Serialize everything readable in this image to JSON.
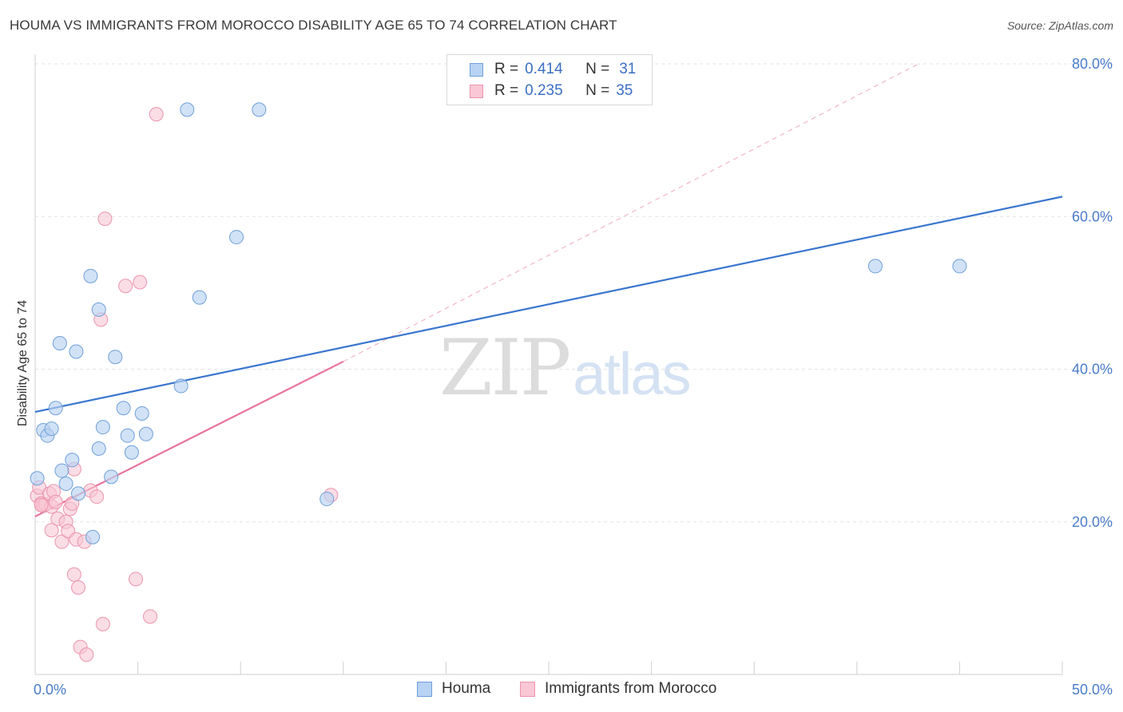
{
  "title": "HOUMA VS IMMIGRANTS FROM MOROCCO DISABILITY AGE 65 TO 74 CORRELATION CHART",
  "source": "Source: ZipAtlas.com",
  "watermark": {
    "zip": "ZIP",
    "atlas": "atlas"
  },
  "legend": {
    "r_label": "R =",
    "n_label": "N =",
    "rows": [
      {
        "series": "Houma",
        "r": "0.414",
        "n": "31"
      },
      {
        "series": "Immigrants from Morocco",
        "r": "0.235",
        "n": "35"
      }
    ]
  },
  "colors": {
    "houma_fill": "#b8d3f3",
    "houma_stroke": "#6f9fd8",
    "houma_line": "#3a76cf",
    "morocco_fill": "#f9c7d5",
    "morocco_stroke": "#ec94ad",
    "morocco_line": "#e8739a",
    "grid": "#e3e3e3",
    "tick_text": "#4a7cc9"
  },
  "chart_data": {
    "type": "scatter",
    "title": "HOUMA VS IMMIGRANTS FROM MOROCCO DISABILITY AGE 65 TO 74 CORRELATION CHART",
    "xlabel": "",
    "ylabel": "Disability Age 65 to 74",
    "xlim": [
      0,
      50
    ],
    "ylim": [
      0,
      80
    ],
    "x_tick_labels": [
      "0.0%",
      "50.0%"
    ],
    "y_ticks": [
      20,
      40,
      60,
      80
    ],
    "y_tick_labels": [
      "20.0%",
      "40.0%",
      "60.0%",
      "80.0%"
    ],
    "grid": true,
    "legend_position": "top-center",
    "series": [
      {
        "name": "Houma",
        "points": [
          [
            0.1,
            25.7
          ],
          [
            0.4,
            32.0
          ],
          [
            0.6,
            31.3
          ],
          [
            0.8,
            32.2
          ],
          [
            1.0,
            34.9
          ],
          [
            1.2,
            43.4
          ],
          [
            1.3,
            26.7
          ],
          [
            1.5,
            25.0
          ],
          [
            1.8,
            28.1
          ],
          [
            2.0,
            42.3
          ],
          [
            2.1,
            23.7
          ],
          [
            2.7,
            52.2
          ],
          [
            2.8,
            18.0
          ],
          [
            3.1,
            47.8
          ],
          [
            3.1,
            29.6
          ],
          [
            3.3,
            32.4
          ],
          [
            3.7,
            25.9
          ],
          [
            3.9,
            41.6
          ],
          [
            4.3,
            34.9
          ],
          [
            4.5,
            31.3
          ],
          [
            4.7,
            29.1
          ],
          [
            5.2,
            34.2
          ],
          [
            5.4,
            31.5
          ],
          [
            7.1,
            37.8
          ],
          [
            7.4,
            74.0
          ],
          [
            8.0,
            49.4
          ],
          [
            9.8,
            57.3
          ],
          [
            10.9,
            74.0
          ],
          [
            14.2,
            23.0
          ],
          [
            40.9,
            53.5
          ],
          [
            45.0,
            53.5
          ]
        ],
        "trend": {
          "x": [
            0,
            50
          ],
          "y": [
            34.4,
            62.6
          ]
        }
      },
      {
        "name": "Immigrants from Morocco",
        "points": [
          [
            0.1,
            23.4
          ],
          [
            0.2,
            24.5
          ],
          [
            0.3,
            22.4
          ],
          [
            0.4,
            22.1
          ],
          [
            0.5,
            22.3
          ],
          [
            0.7,
            23.7
          ],
          [
            0.8,
            22.0
          ],
          [
            0.8,
            18.9
          ],
          [
            0.9,
            24.0
          ],
          [
            1.0,
            22.6
          ],
          [
            1.1,
            20.4
          ],
          [
            1.3,
            17.4
          ],
          [
            1.5,
            20.0
          ],
          [
            1.6,
            18.8
          ],
          [
            1.7,
            21.7
          ],
          [
            1.8,
            22.4
          ],
          [
            1.9,
            26.9
          ],
          [
            1.9,
            13.1
          ],
          [
            2.0,
            17.7
          ],
          [
            2.1,
            11.4
          ],
          [
            2.2,
            3.6
          ],
          [
            2.4,
            17.4
          ],
          [
            2.5,
            2.6
          ],
          [
            2.7,
            24.1
          ],
          [
            3.0,
            23.3
          ],
          [
            3.2,
            46.5
          ],
          [
            3.3,
            6.6
          ],
          [
            3.4,
            59.7
          ],
          [
            4.4,
            50.9
          ],
          [
            4.9,
            12.5
          ],
          [
            5.1,
            51.4
          ],
          [
            5.6,
            7.6
          ],
          [
            5.9,
            73.4
          ],
          [
            14.4,
            23.5
          ],
          [
            0.3,
            22.2
          ]
        ],
        "trend": {
          "x": [
            0,
            15
          ],
          "y": [
            20.7,
            41.0
          ]
        },
        "trend_extension": {
          "x": [
            15,
            43
          ],
          "y": [
            41.0,
            80.0
          ]
        }
      }
    ]
  }
}
